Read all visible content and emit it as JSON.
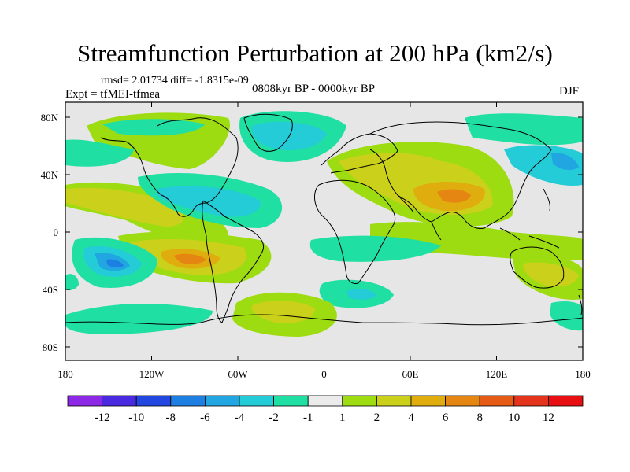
{
  "title": "Streamfunction Perturbation at 200 hPa (km2/s)",
  "stats": "rmsd= 2.01734  diff= -1.8315e-09",
  "experiment": "Expt = tfMEI-tfmea",
  "period": "0808kyr BP - 0000kyr BP",
  "season": "DJF",
  "lat_ticks": [
    "80N",
    "40N",
    "0",
    "40S",
    "80S"
  ],
  "lon_ticks": [
    "180",
    "120W",
    "60W",
    "0",
    "60E",
    "120E",
    "180"
  ],
  "colorbar": {
    "labels": [
      "-12",
      "-10",
      "-8",
      "-6",
      "-4",
      "-2",
      "-1",
      "1",
      "2",
      "4",
      "6",
      "8",
      "10",
      "12"
    ],
    "colors": [
      "#8d28e6",
      "#4a2ae0",
      "#2246e0",
      "#1e7fe2",
      "#21a6e2",
      "#23ccd6",
      "#20dfa3",
      "#ebebeb",
      "#9ddc10",
      "#cbd11b",
      "#e0ad0f",
      "#e58612",
      "#e55a14",
      "#e4341b",
      "#e80f12"
    ]
  }
}
